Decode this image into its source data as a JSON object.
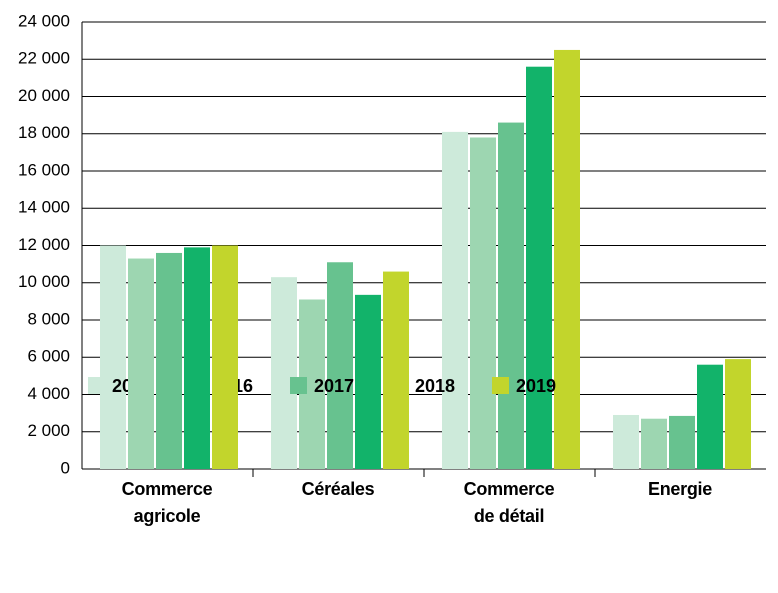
{
  "chart_data": {
    "type": "bar",
    "categories": [
      "Commerce\nagricole",
      "Céréales",
      "Commerce\nde détail",
      "Energie"
    ],
    "series": [
      {
        "name": "2015",
        "color": "#cdeada",
        "values": [
          12000,
          10300,
          18100,
          2900
        ]
      },
      {
        "name": "2016",
        "color": "#9dd6b1",
        "values": [
          11300,
          9100,
          17800,
          2700
        ]
      },
      {
        "name": "2017",
        "color": "#67c28f",
        "values": [
          11600,
          11100,
          18600,
          2850
        ]
      },
      {
        "name": "2018",
        "color": "#12b36a",
        "values": [
          11900,
          9350,
          21600,
          5600
        ]
      },
      {
        "name": "2019",
        "color": "#c2d52c",
        "values": [
          12000,
          10600,
          22500,
          5900
        ]
      }
    ],
    "ylim": [
      0,
      24000
    ],
    "yticks": [
      0,
      {
        "value": 2000,
        "label": "2 000"
      },
      {
        "value": 4000,
        "label": "4 000"
      },
      {
        "value": 6000,
        "label": "6 000"
      },
      {
        "value": 8000,
        "label": "8 000"
      },
      {
        "value": 10000,
        "label": "10 000"
      },
      {
        "value": 12000,
        "label": "12 000"
      },
      {
        "value": 14000,
        "label": "14 000"
      },
      {
        "value": 16000,
        "label": "16 000"
      },
      {
        "value": 18000,
        "label": "18 000"
      },
      {
        "value": 20000,
        "label": "20 000"
      },
      {
        "value": 22000,
        "label": "22 000"
      },
      {
        "value": 24000,
        "label": "24 000"
      }
    ],
    "grid": true,
    "legend": "bottom"
  }
}
